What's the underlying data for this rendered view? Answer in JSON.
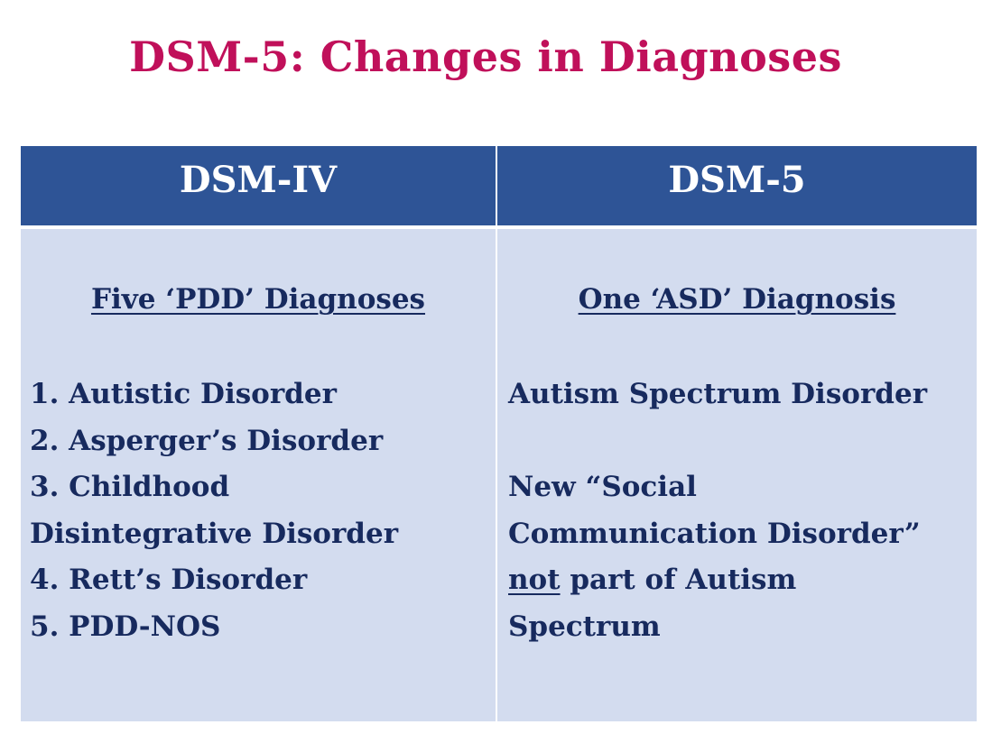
{
  "slide": {
    "title": "DSM-5: Changes in Diagnoses"
  },
  "table": {
    "columns": [
      {
        "header": "DSM-IV",
        "subheading": "Five ‘PDD’ Diagnoses",
        "lines": [
          "1.  Autistic Disorder",
          "2.  Asperger’s Disorder",
          "3.  Childhood",
          "Disintegrative Disorder",
          "4.  Rett’s Disorder",
          "5.  PDD-NOS"
        ]
      },
      {
        "header": "DSM-5",
        "subheading": "One ‘ASD’ Diagnosis",
        "line1": "Autism Spectrum Disorder",
        "line2": "New “Social",
        "line3": "Communication Disorder”",
        "line4_emph": "not",
        "line4_rest": " part of Autism",
        "line5": "Spectrum"
      }
    ]
  },
  "colors": {
    "title": "#c0105a",
    "header_bg": "#2e5496",
    "body_bg": "#d3dcef",
    "body_text": "#172a5e"
  }
}
